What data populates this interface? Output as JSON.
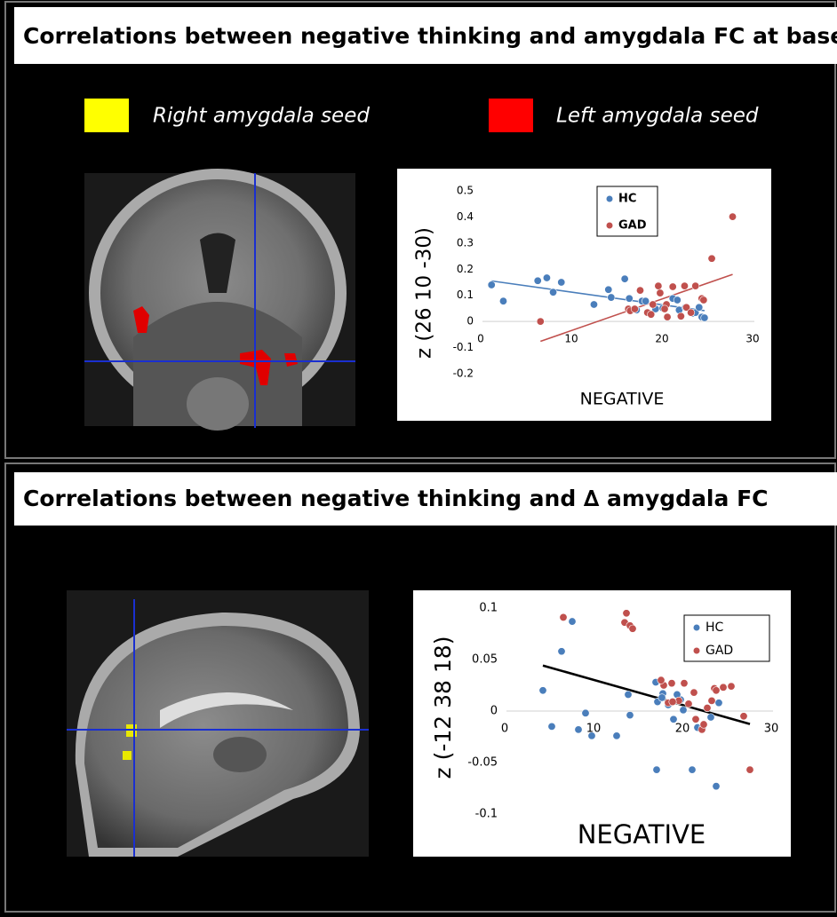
{
  "panels": [
    {
      "title": "Correlations between negative thinking and amygdala FC at baseline"
    },
    {
      "title": "Correlations between negative thinking and ∆ amygdala FC"
    }
  ],
  "seed_legend": [
    {
      "label": "Right amygdala seed",
      "color": "#ffff00"
    },
    {
      "label": "Left amygdala seed",
      "color": "#ff0000"
    }
  ],
  "chart_data": [
    {
      "type": "scatter",
      "ylabel": "z (26 10 -30)",
      "xlabel": "NEGATIVE",
      "xlim": [
        0,
        30
      ],
      "xticks": [
        0,
        10,
        20,
        30
      ],
      "ylim": [
        -0.2,
        0.5
      ],
      "yticks": [
        0.5,
        0.4,
        0.3,
        0.2,
        0.1,
        0,
        -0.1,
        -0.2
      ],
      "legend": "upper-center",
      "trendline": "per-series",
      "series": [
        {
          "name": "HC",
          "color": "#4a7ebb",
          "x": [
            1.0,
            2.3,
            6.1,
            7.1,
            7.8,
            8.7,
            12.3,
            13.9,
            14.2,
            15.7,
            16.2,
            17.0,
            17.6,
            18.0,
            19.1,
            19.9,
            21.0,
            21.7,
            22.4,
            23.2,
            23.5,
            23.9,
            24.2,
            24.5,
            21.5
          ],
          "values": [
            0.14,
            0.078,
            0.156,
            0.167,
            0.112,
            0.15,
            0.065,
            0.122,
            0.092,
            0.163,
            0.088,
            0.044,
            0.078,
            0.078,
            0.048,
            0.051,
            0.088,
            0.044,
            0.054,
            0.031,
            0.034,
            0.054,
            0.017,
            0.014,
            0.082
          ]
        },
        {
          "name": "GAD",
          "color": "#c0504d",
          "x": [
            6.4,
            16.1,
            16.3,
            16.8,
            17.4,
            18.2,
            18.6,
            19.4,
            19.6,
            20.3,
            20.4,
            21.0,
            21.9,
            22.3,
            22.5,
            23.0,
            24.2,
            24.4,
            25.3,
            27.6,
            18.8,
            20.1,
            23.5
          ],
          "values": [
            0,
            0.048,
            0.041,
            0.048,
            0.119,
            0.034,
            0.027,
            0.136,
            0.109,
            0.065,
            0.017,
            0.133,
            0.02,
            0.136,
            0.054,
            0.034,
            0.088,
            0.082,
            0.241,
            0.401,
            0.065,
            0.048,
            0.136
          ]
        }
      ]
    },
    {
      "type": "scatter",
      "ylabel": "z (-12 38 18)",
      "xlabel": "NEGATIVE",
      "xlim": [
        0,
        30
      ],
      "xticks": [
        0,
        10,
        20,
        30
      ],
      "ylim": [
        -0.1,
        0.1
      ],
      "yticks": [
        0.1,
        0.05,
        0,
        -0.05,
        -0.1
      ],
      "legend": "upper-right",
      "trendline": "all",
      "trendline_color": "#000000",
      "series": [
        {
          "name": "HC",
          "color": "#4a7ebb",
          "x": [
            4.1,
            5.1,
            6.2,
            7.4,
            8.1,
            8.9,
            9.6,
            12.4,
            13.9,
            13.7,
            16.8,
            17.0,
            17.6,
            18.2,
            18.8,
            19.6,
            19.9,
            20.9,
            21.5,
            22.1,
            23.0,
            23.6,
            23.9,
            16.9,
            17.5,
            19.2
          ],
          "values": [
            0.02,
            -0.015,
            0.058,
            0.087,
            -0.018,
            -0.002,
            -0.024,
            -0.024,
            -0.004,
            0.016,
            0.028,
            0.009,
            0.017,
            0.006,
            -0.008,
            0.011,
            0.001,
            -0.057,
            -0.016,
            -0.015,
            -0.006,
            -0.073,
            0.008,
            -0.057,
            0.013,
            0.016
          ]
        },
        {
          "name": "GAD",
          "color": "#c0504d",
          "x": [
            6.4,
            13.5,
            13.3,
            13.9,
            14.2,
            17.7,
            18.2,
            18.6,
            19.4,
            20.0,
            20.5,
            21.1,
            21.3,
            22.0,
            22.2,
            22.6,
            23.1,
            23.4,
            23.6,
            24.4,
            25.3,
            26.7,
            27.4,
            18.7,
            17.4
          ],
          "values": [
            0.091,
            0.095,
            0.086,
            0.083,
            0.08,
            0.025,
            0.008,
            0.027,
            0.01,
            0.027,
            0.007,
            0.018,
            -0.008,
            -0.018,
            -0.013,
            0.003,
            0.01,
            0.022,
            0.02,
            0.023,
            0.024,
            -0.005,
            -0.057,
            0.009,
            0.03
          ]
        }
      ]
    }
  ]
}
